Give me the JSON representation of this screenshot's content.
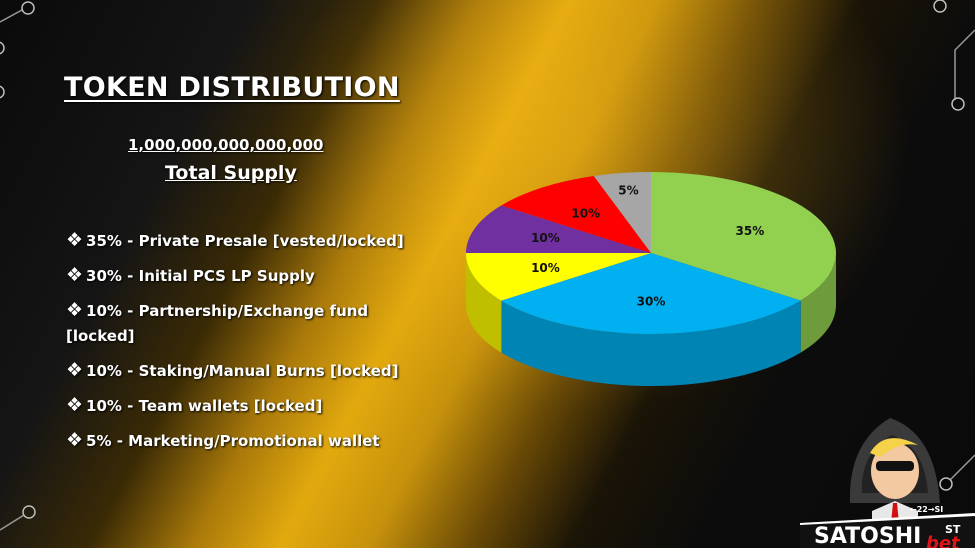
{
  "slide": {
    "title": "TOKEN DISTRIBUTION",
    "total_supply_value": "1,000,000,000,000,000",
    "total_supply_label": "Total Supply"
  },
  "distribution_list": [
    {
      "text": "35%  - Private Presale [vested/locked]"
    },
    {
      "text": "30%  - Initial PCS LP Supply"
    },
    {
      "text": "10%  - Partnership/Exchange fund [locked]"
    },
    {
      "text": "10%  - Staking/Manual Burns [locked]"
    },
    {
      "text": "10%  - Team wallets [locked]"
    },
    {
      "text": "5%  - Marketing/Promotional wallet"
    }
  ],
  "bullet_icon": "diamond-cluster-icon",
  "chart_data": {
    "type": "pie",
    "style": "3d",
    "slices": [
      {
        "value": 35,
        "label": "35%",
        "color": "#92d050"
      },
      {
        "value": 30,
        "label": "30%",
        "color": "#00b0f0"
      },
      {
        "value": 10,
        "label": "10%",
        "color": "#ffff00"
      },
      {
        "value": 10,
        "label": "10%",
        "color": "#7030a0"
      },
      {
        "value": 10,
        "label": "10%",
        "color": "#ff0000"
      },
      {
        "value": 5,
        "label": "5%",
        "color": "#a6a6a6"
      }
    ]
  },
  "branding": {
    "logo_text": "SATOSHI",
    "logo_superscript": "ST",
    "logo_small_text": "←22→SI",
    "logo_bet_text": "bet",
    "mascot_icon": "masked-mascot-icon"
  }
}
